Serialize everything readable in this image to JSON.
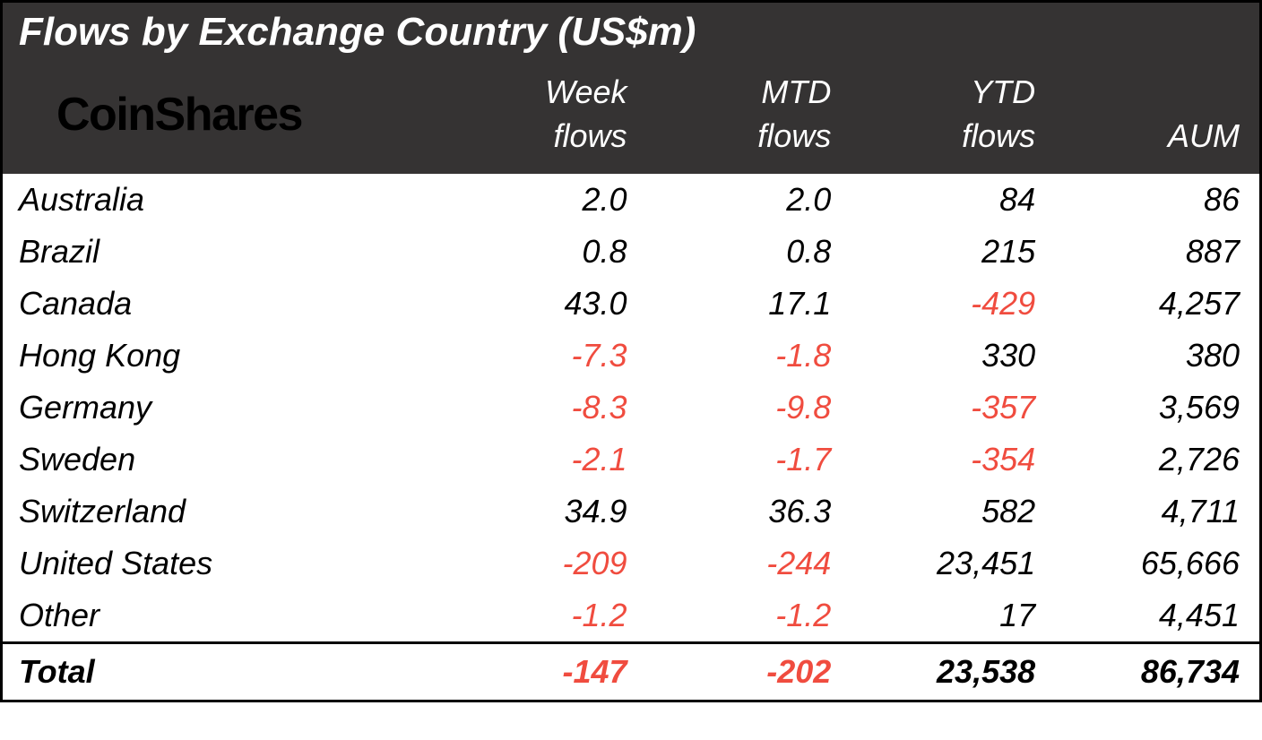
{
  "table": {
    "type": "table",
    "title": "Flows by Exchange Country (US$m)",
    "brand": "CoinShares",
    "background_color_header": "#353333",
    "background_color_body": "#ffffff",
    "text_color_header": "#ffffff",
    "text_color_body": "#000000",
    "negative_color": "#f04c3f",
    "border_color": "#000000",
    "font_family": "Arial, Helvetica, sans-serif",
    "font_style": "italic",
    "title_fontsize": 44,
    "header_fontsize": 36,
    "body_fontsize": 36,
    "logo_fontsize": 52,
    "columns": [
      {
        "key": "country",
        "label": "",
        "align": "left",
        "width_pct": 35
      },
      {
        "key": "week",
        "label": "Week flows",
        "align": "right",
        "width_pct": 16.25
      },
      {
        "key": "mtd",
        "label": "MTD flows",
        "align": "right",
        "width_pct": 16.25
      },
      {
        "key": "ytd",
        "label": "YTD flows",
        "align": "right",
        "width_pct": 16.25
      },
      {
        "key": "aum",
        "label": "AUM",
        "align": "right",
        "width_pct": 16.25
      }
    ],
    "header_labels": {
      "week_line1": "Week",
      "week_line2": "flows",
      "mtd_line1": "MTD",
      "mtd_line2": "flows",
      "ytd_line1": "YTD",
      "ytd_line2": "flows",
      "aum": "AUM"
    },
    "rows": [
      {
        "country": "Australia",
        "week": "2.0",
        "week_neg": false,
        "mtd": "2.0",
        "mtd_neg": false,
        "ytd": "84",
        "ytd_neg": false,
        "aum": "86"
      },
      {
        "country": "Brazil",
        "week": "0.8",
        "week_neg": false,
        "mtd": "0.8",
        "mtd_neg": false,
        "ytd": "215",
        "ytd_neg": false,
        "aum": "887"
      },
      {
        "country": "Canada",
        "week": "43.0",
        "week_neg": false,
        "mtd": "17.1",
        "mtd_neg": false,
        "ytd": "-429",
        "ytd_neg": true,
        "aum": "4,257"
      },
      {
        "country": "Hong Kong",
        "week": "-7.3",
        "week_neg": true,
        "mtd": "-1.8",
        "mtd_neg": true,
        "ytd": "330",
        "ytd_neg": false,
        "aum": "380"
      },
      {
        "country": "Germany",
        "week": "-8.3",
        "week_neg": true,
        "mtd": "-9.8",
        "mtd_neg": true,
        "ytd": "-357",
        "ytd_neg": true,
        "aum": "3,569"
      },
      {
        "country": "Sweden",
        "week": "-2.1",
        "week_neg": true,
        "mtd": "-1.7",
        "mtd_neg": true,
        "ytd": "-354",
        "ytd_neg": true,
        "aum": "2,726"
      },
      {
        "country": "Switzerland",
        "week": "34.9",
        "week_neg": false,
        "mtd": "36.3",
        "mtd_neg": false,
        "ytd": "582",
        "ytd_neg": false,
        "aum": "4,711"
      },
      {
        "country": "United States",
        "week": "-209",
        "week_neg": true,
        "mtd": "-244",
        "mtd_neg": true,
        "ytd": "23,451",
        "ytd_neg": false,
        "aum": "65,666"
      },
      {
        "country": "Other",
        "week": "-1.2",
        "week_neg": true,
        "mtd": "-1.2",
        "mtd_neg": true,
        "ytd": "17",
        "ytd_neg": false,
        "aum": "4,451"
      }
    ],
    "total": {
      "label": "Total",
      "week": "-147",
      "week_neg": true,
      "mtd": "-202",
      "mtd_neg": true,
      "ytd": "23,538",
      "ytd_neg": false,
      "aum": "86,734"
    }
  }
}
